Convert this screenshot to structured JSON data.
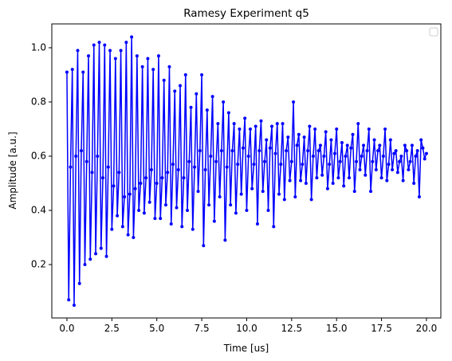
{
  "chart_data": {
    "type": "line",
    "title": "Ramesy Experiment q5",
    "xlabel": "Time [us]",
    "ylabel": "Amplitude [a.u.]",
    "x": [
      0,
      0.1,
      0.2,
      0.3,
      0.4,
      0.5,
      0.6,
      0.7,
      0.8,
      0.9,
      1,
      1.1,
      1.2,
      1.3,
      1.4,
      1.5,
      1.6,
      1.7,
      1.8,
      1.9,
      2,
      2.1,
      2.2,
      2.3,
      2.4,
      2.5,
      2.6,
      2.7,
      2.8,
      2.9,
      3,
      3.1,
      3.2,
      3.3,
      3.4,
      3.5,
      3.6,
      3.7,
      3.8,
      3.9,
      4,
      4.1,
      4.2,
      4.3,
      4.4,
      4.5,
      4.6,
      4.7,
      4.8,
      4.9,
      5,
      5.1,
      5.2,
      5.3,
      5.4,
      5.5,
      5.6,
      5.7,
      5.8,
      5.9,
      6,
      6.1,
      6.2,
      6.3,
      6.4,
      6.5,
      6.6,
      6.7,
      6.8,
      6.9,
      7,
      7.1,
      7.2,
      7.3,
      7.4,
      7.5,
      7.6,
      7.7,
      7.8,
      7.9,
      8,
      8.1,
      8.2,
      8.3,
      8.4,
      8.5,
      8.6,
      8.7,
      8.8,
      8.9,
      9,
      9.1,
      9.2,
      9.3,
      9.4,
      9.5,
      9.6,
      9.7,
      9.8,
      9.9,
      10,
      10.1,
      10.2,
      10.3,
      10.4,
      10.5,
      10.6,
      10.7,
      10.8,
      10.9,
      11,
      11.1,
      11.2,
      11.3,
      11.4,
      11.5,
      11.6,
      11.7,
      11.8,
      11.9,
      12,
      12.1,
      12.2,
      12.3,
      12.4,
      12.5,
      12.6,
      12.7,
      12.8,
      12.9,
      13,
      13.1,
      13.2,
      13.3,
      13.4,
      13.5,
      13.6,
      13.7,
      13.8,
      13.9,
      14,
      14.1,
      14.2,
      14.3,
      14.4,
      14.5,
      14.6,
      14.7,
      14.8,
      14.9,
      15,
      15.1,
      15.2,
      15.3,
      15.4,
      15.5,
      15.6,
      15.7,
      15.8,
      15.9,
      16,
      16.1,
      16.2,
      16.3,
      16.4,
      16.5,
      16.6,
      16.7,
      16.8,
      16.9,
      17,
      17.1,
      17.2,
      17.3,
      17.4,
      17.5,
      17.6,
      17.7,
      17.8,
      17.9,
      18,
      18.1,
      18.2,
      18.3,
      18.4,
      18.5,
      18.6,
      18.7,
      18.8,
      18.9,
      19,
      19.1,
      19.2,
      19.3,
      19.4,
      19.5,
      19.6,
      19.7,
      19.8,
      19.9,
      20
    ],
    "series": [
      {
        "color": "#0000ff",
        "values": [
          0.91,
          0.07,
          0.56,
          0.92,
          0.05,
          0.6,
          0.99,
          0.13,
          0.62,
          0.91,
          0.2,
          0.58,
          0.97,
          0.22,
          0.54,
          1.01,
          0.24,
          0.6,
          1.02,
          0.26,
          0.52,
          1.01,
          0.23,
          0.56,
          0.99,
          0.33,
          0.49,
          0.96,
          0.38,
          0.54,
          0.99,
          0.34,
          0.45,
          1.02,
          0.31,
          0.46,
          1.04,
          0.3,
          0.48,
          0.97,
          0.4,
          0.5,
          0.93,
          0.39,
          0.52,
          0.96,
          0.43,
          0.55,
          0.92,
          0.37,
          0.5,
          0.97,
          0.37,
          0.52,
          0.88,
          0.42,
          0.54,
          0.93,
          0.35,
          0.57,
          0.84,
          0.41,
          0.55,
          0.86,
          0.34,
          0.52,
          0.9,
          0.4,
          0.58,
          0.78,
          0.33,
          0.56,
          0.83,
          0.47,
          0.62,
          0.9,
          0.27,
          0.55,
          0.77,
          0.42,
          0.6,
          0.82,
          0.36,
          0.58,
          0.72,
          0.45,
          0.62,
          0.8,
          0.29,
          0.56,
          0.76,
          0.42,
          0.62,
          0.72,
          0.39,
          0.57,
          0.7,
          0.46,
          0.63,
          0.74,
          0.4,
          0.6,
          0.7,
          0.48,
          0.57,
          0.71,
          0.35,
          0.62,
          0.73,
          0.47,
          0.58,
          0.66,
          0.4,
          0.63,
          0.71,
          0.34,
          0.61,
          0.72,
          0.46,
          0.57,
          0.72,
          0.44,
          0.62,
          0.67,
          0.51,
          0.58,
          0.8,
          0.45,
          0.64,
          0.68,
          0.51,
          0.57,
          0.67,
          0.5,
          0.62,
          0.71,
          0.44,
          0.6,
          0.7,
          0.52,
          0.62,
          0.64,
          0.53,
          0.6,
          0.69,
          0.48,
          0.57,
          0.66,
          0.5,
          0.61,
          0.7,
          0.52,
          0.58,
          0.65,
          0.49,
          0.6,
          0.64,
          0.52,
          0.63,
          0.68,
          0.47,
          0.58,
          0.72,
          0.55,
          0.6,
          0.64,
          0.53,
          0.62,
          0.7,
          0.47,
          0.58,
          0.66,
          0.55,
          0.62,
          0.64,
          0.52,
          0.6,
          0.7,
          0.51,
          0.57,
          0.66,
          0.55,
          0.61,
          0.62,
          0.54,
          0.58,
          0.6,
          0.51,
          0.64,
          0.62,
          0.55,
          0.58,
          0.64,
          0.5,
          0.6,
          0.62,
          0.45,
          0.66,
          0.63,
          0.59,
          0.61
        ]
      }
    ],
    "xlim": [
      -0.84,
      20.8
    ],
    "ylim": [
      0.003,
      1.088
    ],
    "xticks": [
      {
        "value": 0,
        "label": "0.0"
      },
      2.5,
      {
        "value": 5,
        "label": "5.0"
      },
      7.5,
      {
        "value": 10,
        "label": "10.0"
      },
      12.5,
      {
        "value": 15,
        "label": "15.0"
      },
      17.5,
      {
        "value": 20,
        "label": "20.0"
      }
    ],
    "yticks": [
      0.2,
      0.4,
      0.6,
      0.8,
      {
        "value": 1,
        "label": "1.0"
      }
    ]
  }
}
